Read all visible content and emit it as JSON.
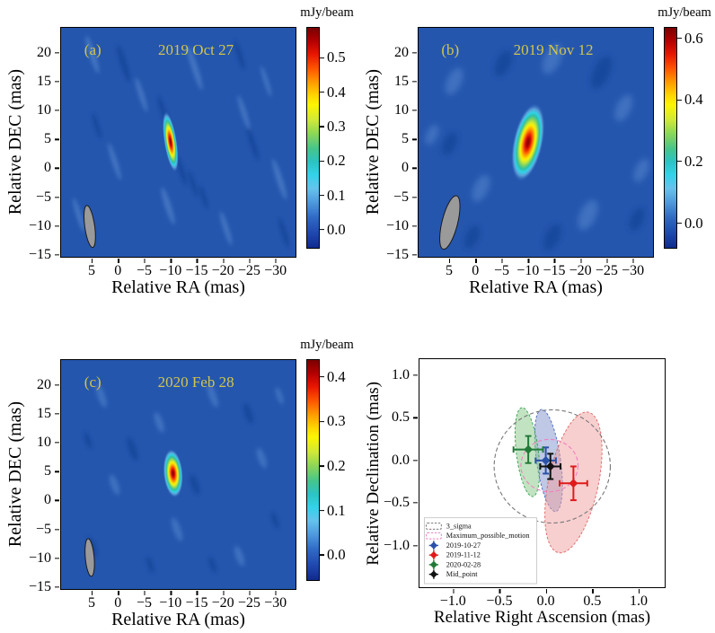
{
  "chart_data": [
    {
      "id": "a",
      "type": "heatmap",
      "panel_label": "(a)",
      "title": "2019 Oct 27",
      "xlabel": "Relative RA (mas)",
      "ylabel": "Relative DEC (mas)",
      "xlim": [
        11,
        -34
      ],
      "ylim": [
        -15.5,
        24.5
      ],
      "xticks": [
        5,
        0,
        -5,
        -10,
        -15,
        -20,
        -25,
        -30
      ],
      "yticks": [
        20,
        15,
        10,
        5,
        0,
        -5,
        -10,
        -15
      ],
      "colorbar": {
        "label": "mJy/beam",
        "ticks": [
          0.5,
          0.4,
          0.3,
          0.2,
          0.1,
          0.0
        ],
        "vmax": 0.59,
        "vmin": -0.055
      },
      "source": {
        "ra": -10.0,
        "dec": 4.6,
        "semi_major_mas": 5.4,
        "semi_minor_mas": 1.25,
        "rot_deg": -9,
        "peak_mJy_per_beam": 0.55
      },
      "beam": {
        "ra": 5.5,
        "dec": -10.2,
        "semi_major_mas": 3.7,
        "semi_minor_mas": 0.95,
        "rot_deg": -8
      }
    },
    {
      "id": "b",
      "type": "heatmap",
      "panel_label": "(b)",
      "title": "2019 Nov 12",
      "xlabel": "Relative RA (mas)",
      "ylabel": "Relative DEC (mas)",
      "xlim": [
        11,
        -34
      ],
      "ylim": [
        -15.5,
        24.5
      ],
      "xticks": [
        5,
        0,
        -5,
        -10,
        -15,
        -20,
        -25,
        -30
      ],
      "yticks": [
        20,
        15,
        10,
        5,
        0,
        -5,
        -10,
        -15
      ],
      "colorbar": {
        "label": "mJy/beam",
        "ticks": [
          0.6,
          0.4,
          0.2,
          0.0
        ],
        "vmax": 0.637,
        "vmin": -0.083
      },
      "source": {
        "ra": -10.0,
        "dec": 4.5,
        "semi_major_mas": 7.0,
        "semi_minor_mas": 2.9,
        "rot_deg": 12,
        "peak_mJy_per_beam": 0.65
      },
      "beam": {
        "ra": 5.0,
        "dec": -9.5,
        "semi_major_mas": 4.8,
        "semi_minor_mas": 1.5,
        "rot_deg": 14
      }
    },
    {
      "id": "c",
      "type": "heatmap",
      "panel_label": "(c)",
      "title": "2020 Feb 28",
      "xlabel": "Relative RA (mas)",
      "ylabel": "Relative DEC (mas)",
      "xlim": [
        11,
        -34
      ],
      "ylim": [
        -15.5,
        24.5
      ],
      "xticks": [
        5,
        0,
        -5,
        -10,
        -15,
        -20,
        -25,
        -30
      ],
      "yticks": [
        20,
        15,
        10,
        5,
        0,
        -5,
        -10,
        -15
      ],
      "colorbar": {
        "label": "mJy/beam",
        "ticks": [
          0.4,
          0.3,
          0.2,
          0.1,
          0.0
        ],
        "vmax": 0.44,
        "vmin": -0.058
      },
      "source": {
        "ra": -10.5,
        "dec": 4.7,
        "semi_major_mas": 4.3,
        "semi_minor_mas": 1.9,
        "rot_deg": -5,
        "peak_mJy_per_beam": 0.45
      },
      "beam": {
        "ra": 5.5,
        "dec": -10.0,
        "semi_major_mas": 3.3,
        "semi_minor_mas": 0.85,
        "rot_deg": -5
      }
    },
    {
      "id": "d",
      "type": "scatter",
      "xlabel": "Relative Right Ascension (mas)",
      "ylabel": "Relative Declination (mas)",
      "xlim": [
        -1.37,
        1.29
      ],
      "ylim": [
        -1.5,
        1.2
      ],
      "xticks": [
        -1.0,
        -0.5,
        0.0,
        0.5,
        1.0
      ],
      "yticks": [
        1.0,
        0.5,
        0.0,
        -0.5,
        -1.0
      ],
      "points": [
        {
          "label": "2019-10-27",
          "x": 0.0,
          "y": 0.0,
          "xerr": 0.11,
          "yerr": 0.155,
          "color": "#2a52a8"
        },
        {
          "label": "2019-11-12",
          "x": 0.3,
          "y": -0.27,
          "xerr": 0.15,
          "yerr": 0.2,
          "color": "#e01a1a"
        },
        {
          "label": "2020-02-28",
          "x": -0.19,
          "y": 0.13,
          "xerr": 0.16,
          "yerr": 0.16,
          "color": "#217a38"
        },
        {
          "label": "Mid_point",
          "x": 0.05,
          "y": -0.07,
          "xerr": 0.11,
          "yerr": 0.15,
          "color": "#111111"
        }
      ],
      "filled_ellipses": [
        {
          "cx": 0.03,
          "cy": 0.0,
          "semi_x": 0.13,
          "semi_y": 0.61,
          "rot_deg": -8,
          "fill": "#8092cc",
          "stroke": "#4466bb"
        },
        {
          "cx": -0.2,
          "cy": 0.1,
          "semi_x": 0.12,
          "semi_y": 0.53,
          "rot_deg": -7,
          "fill": "#85c785",
          "stroke": "#2e9e4a"
        },
        {
          "cx": 0.3,
          "cy": -0.26,
          "semi_x": 0.27,
          "semi_y": 0.85,
          "rot_deg": 12,
          "fill": "#ef9f9f",
          "stroke": "#e06060"
        }
      ],
      "outline_ellipses": [
        {
          "label": "3_sigma",
          "cx": 0.07,
          "cy": -0.07,
          "semi_x": 0.63,
          "semi_y": 0.67,
          "stroke": "#777777"
        },
        {
          "label": "Maximum_possible_motion",
          "cx": 0.04,
          "cy": -0.06,
          "semi_x": 0.31,
          "semi_y": 0.31,
          "stroke": "#f080c0"
        }
      ],
      "legend": [
        {
          "marker": "ellipse",
          "color": "#777777",
          "label": "3_sigma"
        },
        {
          "marker": "ellipse",
          "color": "#f080c0",
          "label": "Maximum_possible_motion"
        },
        {
          "marker": "diamond",
          "color": "#2a52a8",
          "label": "2019-10-27"
        },
        {
          "marker": "diamond",
          "color": "#e01a1a",
          "label": "2019-11-12"
        },
        {
          "marker": "diamond",
          "color": "#217a38",
          "label": "2020-02-28"
        },
        {
          "marker": "diamond",
          "color": "#111111",
          "label": "Mid_point"
        }
      ]
    }
  ],
  "colors": {
    "map_background": "#2456ae",
    "annotation_yellow": "#d3c44b",
    "beam_gray": "#9a9a9a"
  }
}
